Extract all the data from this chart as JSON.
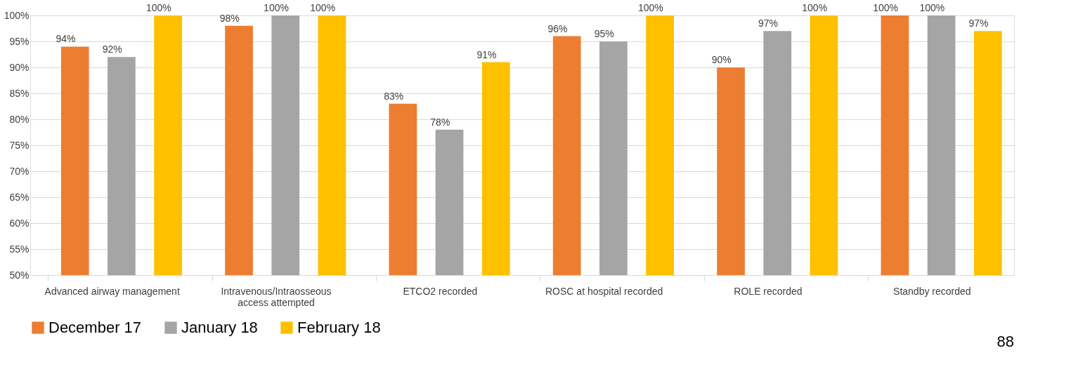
{
  "chart_data": {
    "type": "bar",
    "categories": [
      "Advanced airway management",
      "Intravenous/Intraosseous access attempted",
      "ETCO2 recorded",
      "ROSC at hospital recorded",
      "ROLE recorded",
      "Standby recorded"
    ],
    "series": [
      {
        "name": "December 17",
        "color": "#ed7d31",
        "values": [
          94,
          98,
          83,
          96,
          90,
          100
        ],
        "value_labels": [
          "94%",
          "98%",
          "83%",
          "96%",
          "90%",
          "100%"
        ]
      },
      {
        "name": "January 18",
        "color": "#a5a5a5",
        "values": [
          92,
          100,
          78,
          95,
          97,
          100
        ],
        "value_labels": [
          "92%",
          "100%",
          "78%",
          "95%",
          "97%",
          "100%"
        ]
      },
      {
        "name": "February 18",
        "color": "#ffc000",
        "values": [
          100,
          100,
          91,
          100,
          100,
          97
        ],
        "value_labels": [
          "100%",
          "100%",
          "91%",
          "100%",
          "100%",
          "97%"
        ]
      }
    ],
    "ylim": [
      50,
      100
    ],
    "yticks": [
      {
        "value": 50,
        "label": "50%"
      },
      {
        "value": 55,
        "label": "55%"
      },
      {
        "value": 60,
        "label": "60%"
      },
      {
        "value": 65,
        "label": "65%"
      },
      {
        "value": 70,
        "label": "70%"
      },
      {
        "value": 75,
        "label": "75%"
      },
      {
        "value": 80,
        "label": "80%"
      },
      {
        "value": 85,
        "label": "85%"
      },
      {
        "value": 90,
        "label": "90%"
      },
      {
        "value": 95,
        "label": "95%"
      },
      {
        "value": 100,
        "label": "100%"
      }
    ],
    "grid": "y",
    "legend": "bottom",
    "annotations": [
      "88"
    ]
  }
}
